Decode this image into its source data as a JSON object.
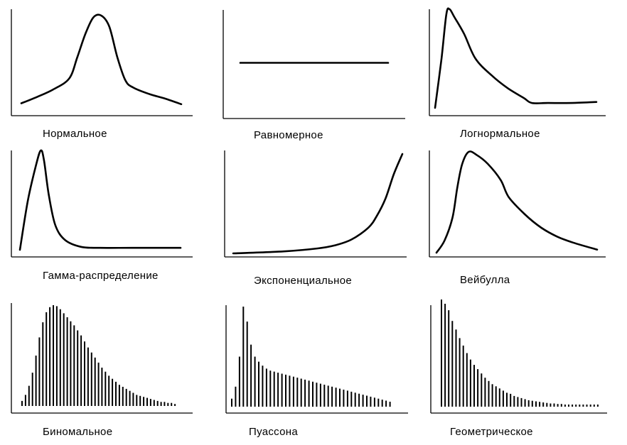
{
  "colors": {
    "line": "#000000",
    "background": "#ffffff"
  },
  "chart_data": [
    {
      "type": "line",
      "label": "Нормальное",
      "x": [
        0,
        0.1,
        0.2,
        0.3,
        0.35,
        0.4,
        0.45,
        0.5,
        0.55,
        0.6,
        0.65,
        0.7,
        0.8,
        0.9,
        1.0
      ],
      "values": [
        0.05,
        0.12,
        0.2,
        0.32,
        0.55,
        0.8,
        0.98,
        1.0,
        0.88,
        0.55,
        0.3,
        0.22,
        0.15,
        0.1,
        0.04
      ]
    },
    {
      "type": "line",
      "label": "Равномерное",
      "x": [
        0,
        1
      ],
      "values": [
        0.75,
        0.75
      ]
    },
    {
      "type": "line",
      "label": "Логнормальное",
      "x": [
        0,
        0.04,
        0.07,
        0.09,
        0.12,
        0.18,
        0.25,
        0.35,
        0.45,
        0.55,
        0.6,
        0.7,
        0.85,
        1.0
      ],
      "values": [
        0.0,
        0.5,
        0.95,
        1.0,
        0.92,
        0.75,
        0.5,
        0.33,
        0.2,
        0.1,
        0.05,
        0.05,
        0.05,
        0.06
      ]
    },
    {
      "type": "line",
      "label": "Гамма-распределение",
      "x": [
        0,
        0.05,
        0.1,
        0.13,
        0.15,
        0.18,
        0.22,
        0.28,
        0.38,
        0.5,
        0.7,
        1.0
      ],
      "values": [
        0.0,
        0.5,
        0.85,
        1.0,
        0.9,
        0.55,
        0.25,
        0.1,
        0.03,
        0.02,
        0.02,
        0.02
      ]
    },
    {
      "type": "line",
      "label": "Экспоненциальное",
      "x": [
        0,
        0.3,
        0.5,
        0.6,
        0.7,
        0.8,
        0.85,
        0.9,
        0.95,
        1.0
      ],
      "values": [
        0.0,
        0.02,
        0.05,
        0.08,
        0.14,
        0.26,
        0.38,
        0.55,
        0.8,
        1.0
      ]
    },
    {
      "type": "line",
      "label": "Вейбулла",
      "x": [
        0,
        0.05,
        0.1,
        0.13,
        0.16,
        0.2,
        0.25,
        0.32,
        0.4,
        0.45,
        0.55,
        0.65,
        0.75,
        0.85,
        1.0
      ],
      "values": [
        0.0,
        0.12,
        0.35,
        0.65,
        0.88,
        1.0,
        0.97,
        0.88,
        0.72,
        0.55,
        0.38,
        0.25,
        0.16,
        0.1,
        0.03
      ]
    },
    {
      "type": "bar",
      "label": "Биномальное",
      "values": [
        0.05,
        0.11,
        0.2,
        0.33,
        0.5,
        0.68,
        0.83,
        0.93,
        0.98,
        1.0,
        0.99,
        0.96,
        0.92,
        0.88,
        0.84,
        0.8,
        0.75,
        0.7,
        0.64,
        0.58,
        0.53,
        0.48,
        0.43,
        0.38,
        0.34,
        0.3,
        0.27,
        0.24,
        0.21,
        0.19,
        0.17,
        0.15,
        0.13,
        0.11,
        0.1,
        0.09,
        0.08,
        0.07,
        0.06,
        0.05,
        0.04,
        0.04,
        0.03,
        0.03,
        0.02
      ]
    },
    {
      "type": "bar",
      "label": "Пуассона",
      "values": [
        0.08,
        0.2,
        0.5,
        1.0,
        0.85,
        0.62,
        0.5,
        0.45,
        0.41,
        0.38,
        0.36,
        0.35,
        0.34,
        0.33,
        0.32,
        0.31,
        0.3,
        0.29,
        0.28,
        0.27,
        0.26,
        0.25,
        0.24,
        0.23,
        0.22,
        0.21,
        0.2,
        0.19,
        0.18,
        0.17,
        0.16,
        0.15,
        0.14,
        0.13,
        0.12,
        0.11,
        0.1,
        0.09,
        0.08,
        0.07,
        0.06,
        0.05
      ]
    },
    {
      "type": "bar",
      "label": "Геометрическое",
      "values": [
        1.0,
        0.96,
        0.9,
        0.8,
        0.72,
        0.64,
        0.57,
        0.5,
        0.44,
        0.39,
        0.35,
        0.31,
        0.27,
        0.24,
        0.21,
        0.19,
        0.17,
        0.15,
        0.13,
        0.12,
        0.1,
        0.09,
        0.08,
        0.07,
        0.06,
        0.055,
        0.05,
        0.045,
        0.04,
        0.035,
        0.03,
        0.03,
        0.025,
        0.025,
        0.02,
        0.02,
        0.02,
        0.02,
        0.02,
        0.02,
        0.02,
        0.02,
        0.02,
        0.02
      ]
    }
  ]
}
